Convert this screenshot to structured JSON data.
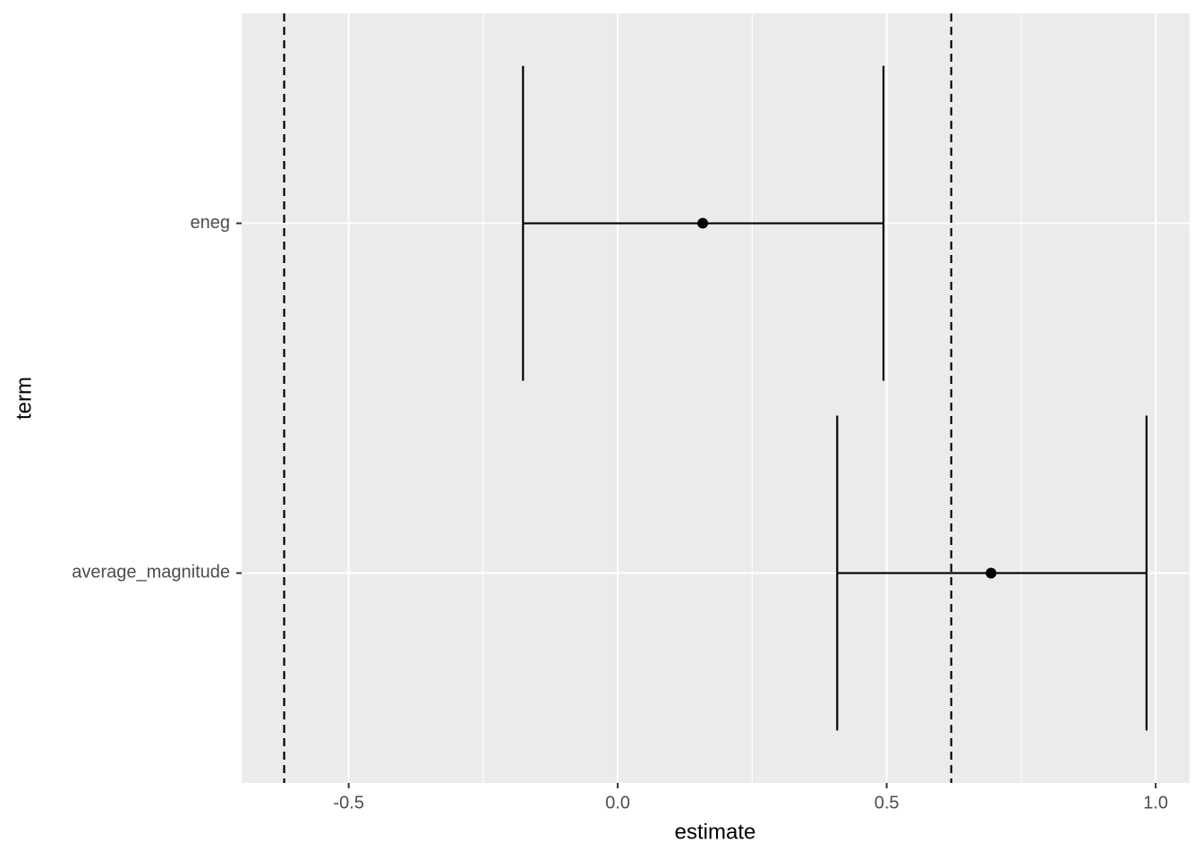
{
  "chart_data": {
    "type": "errorbar",
    "x_label": "estimate",
    "y_label": "term",
    "categories": [
      "average_magnitude",
      "eneg"
    ],
    "values": [
      0.694,
      0.158
    ],
    "lower": [
      0.408,
      -0.176
    ],
    "upper": [
      0.983,
      0.494
    ],
    "color": "#000000",
    "reference_lines": [
      -0.62,
      0.62
    ],
    "xlim": [
      -0.699,
      1.063
    ],
    "xticks": [
      {
        "value": -0.5,
        "label": "-0.5"
      },
      {
        "value": 0,
        "label": "0.0"
      },
      {
        "value": 0.5,
        "label": "0.5"
      },
      {
        "value": 1,
        "label": "1.0"
      }
    ],
    "x_minor_ticks": [
      -0.25,
      0.25,
      0.75
    ],
    "grid": true
  }
}
